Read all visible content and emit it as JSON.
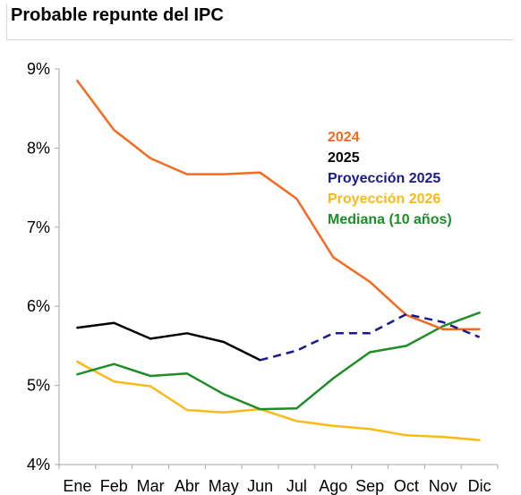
{
  "chart_data": {
    "type": "line",
    "title": "Probable repunte del IPC",
    "categories": [
      "Ene",
      "Feb",
      "Mar",
      "Abr",
      "May",
      "Jun",
      "Jul",
      "Ago",
      "Sep",
      "Oct",
      "Nov",
      "Dic"
    ],
    "ylim": [
      4,
      9
    ],
    "yticks": [
      "4%",
      "5%",
      "6%",
      "7%",
      "8%",
      "9%"
    ],
    "ytick_values": [
      4,
      5,
      6,
      7,
      8,
      9
    ],
    "grid": false,
    "legend_position": "top-right",
    "series": [
      {
        "name": "2024",
        "color": "#f26b21",
        "style": "solid",
        "values": [
          8.85,
          8.23,
          7.87,
          7.67,
          7.67,
          7.69,
          7.36,
          6.62,
          6.31,
          5.89,
          5.71,
          5.71
        ]
      },
      {
        "name": "2025",
        "color": "#000000",
        "style": "solid",
        "values": [
          5.73,
          5.79,
          5.59,
          5.66,
          5.55,
          5.32,
          null,
          null,
          null,
          null,
          null,
          null
        ]
      },
      {
        "name": "Proyección 2025",
        "color": "#1a1a8c",
        "style": "dashed",
        "values": [
          null,
          null,
          null,
          null,
          null,
          5.32,
          5.44,
          5.66,
          5.66,
          5.9,
          5.8,
          5.61
        ]
      },
      {
        "name": "Proyección 2026",
        "color": "#fbb914",
        "style": "solid",
        "values": [
          5.3,
          5.05,
          4.99,
          4.69,
          4.66,
          4.7,
          4.55,
          4.49,
          4.45,
          4.37,
          4.35,
          4.31
        ]
      },
      {
        "name": "Mediana (10 años)",
        "color": "#1e8c28",
        "style": "solid",
        "values": [
          5.14,
          5.27,
          5.12,
          5.15,
          4.89,
          4.7,
          4.71,
          5.09,
          5.42,
          5.5,
          5.75,
          5.92
        ]
      }
    ]
  }
}
